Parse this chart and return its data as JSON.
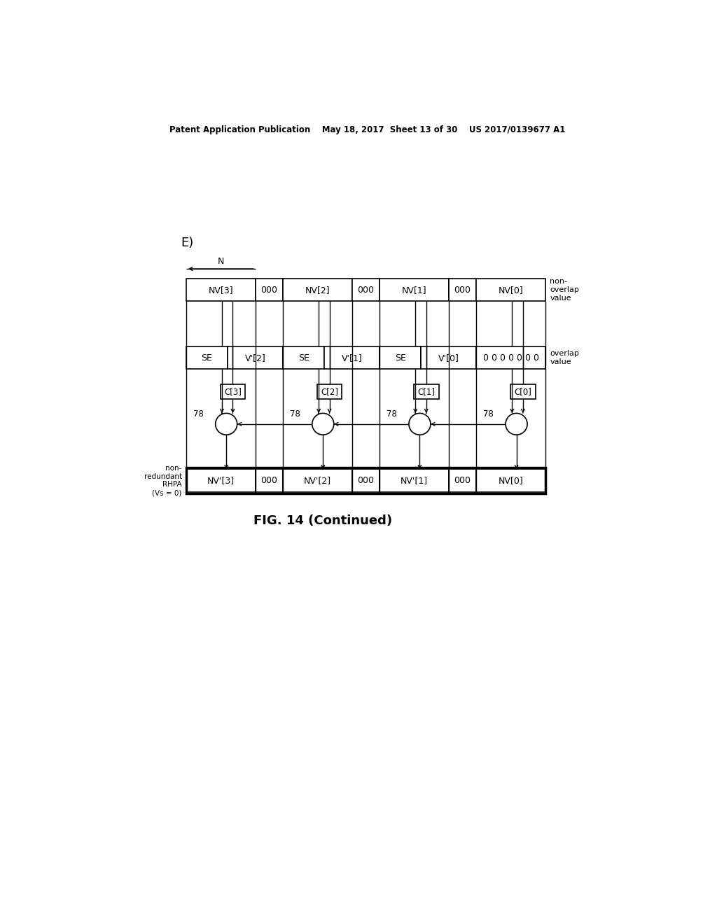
{
  "title_header": "Patent Application Publication    May 18, 2017  Sheet 13 of 30    US 2017/0139677 A1",
  "fig_label": "FIG. 14 (Continued)",
  "section_label": "E)",
  "n_label": "N",
  "row1_label": "non-\noverlap\nvalue",
  "row2_label": "overlap\nvalue",
  "row3_label": "non-\nredundant\nRHPA\n(Vs = 0)",
  "row1_cells": [
    "NV[3]",
    "000",
    "NV[2]",
    "000",
    "NV[1]",
    "000",
    "NV[0]"
  ],
  "row2_cells": [
    "SE",
    "V'[2]",
    "SE",
    "V'[1]",
    "SE",
    "V'[0]",
    "0 0 0 0 0 0 0"
  ],
  "row3_cells": [
    "NV'[3]",
    "000",
    "NV'[2]",
    "000",
    "NV'[1]",
    "000",
    "NV[0]"
  ],
  "c_labels": [
    "C[3]",
    "C[2]",
    "C[1]",
    "C[0]"
  ],
  "adder_label": "78",
  "bg_color": "#ffffff",
  "line_color": "#000000",
  "text_color": "#000000",
  "header_fontsize": 8.5,
  "cell_fontsize": 9,
  "fig_label_fontsize": 13
}
